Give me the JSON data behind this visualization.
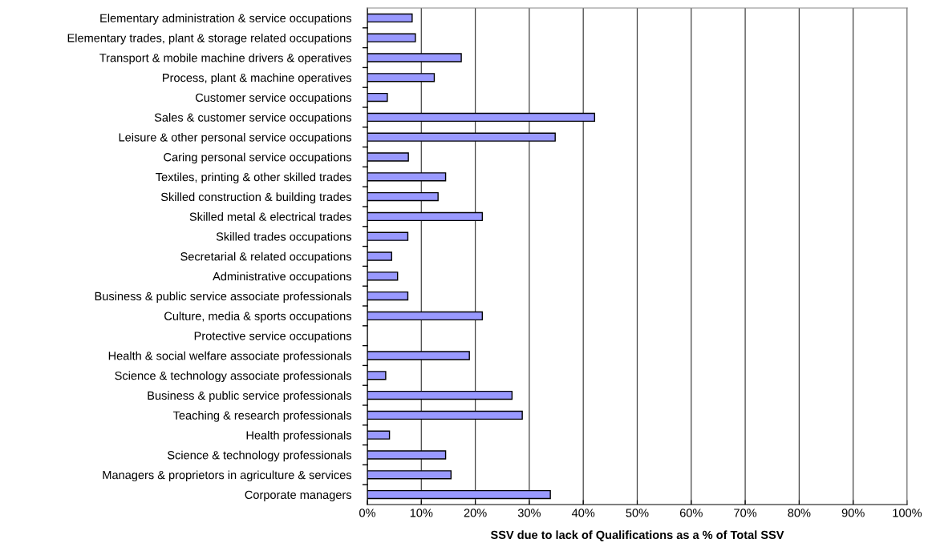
{
  "chart_data": {
    "type": "bar",
    "orientation": "horizontal",
    "xlabel": "SSV due to lack of Qualifications as a % of Total SSV",
    "categories": [
      "Elementary administration & service occupations",
      "Elementary trades, plant & storage related occupations",
      "Transport & mobile machine drivers & operatives",
      "Process, plant & machine operatives",
      "Customer service occupations",
      "Sales & customer service occupations",
      "Leisure & other personal service occupations",
      "Caring personal service occupations",
      "Textiles, printing & other skilled trades",
      "Skilled construction & building trades",
      "Skilled metal & electrical trades",
      "Skilled trades occupations",
      "Secretarial & related occupations",
      "Administrative occupations",
      "Business & public service associate professionals",
      "Culture, media & sports occupations",
      "Protective service occupations",
      "Health & social welfare associate professionals",
      "Science & technology associate professionals",
      "Business & public service professionals",
      "Teaching & research professionals",
      "Health professionals",
      "Science & technology professionals",
      "Managers & proprietors in agriculture & services",
      "Corporate managers"
    ],
    "values": [
      8.3,
      8.9,
      17.4,
      12.4,
      3.7,
      42.1,
      34.8,
      7.6,
      14.5,
      13.1,
      21.3,
      7.5,
      4.5,
      5.6,
      7.5,
      21.3,
      null,
      18.9,
      3.4,
      26.8,
      28.7,
      4.1,
      14.5,
      15.5,
      33.9
    ],
    "color": "#9999ff",
    "xlim": [
      0,
      100
    ],
    "xticks": [
      {
        "value": 0,
        "label": "0%"
      },
      {
        "value": 10,
        "label": "10%"
      },
      {
        "value": 20,
        "label": "20%"
      },
      {
        "value": 30,
        "label": "30%"
      },
      {
        "value": 40,
        "label": "40%"
      },
      {
        "value": 50,
        "label": "50%"
      },
      {
        "value": 60,
        "label": "60%"
      },
      {
        "value": 70,
        "label": "70%"
      },
      {
        "value": 80,
        "label": "80%"
      },
      {
        "value": 90,
        "label": "90%"
      },
      {
        "value": 100,
        "label": "100%"
      }
    ],
    "grid": "x",
    "legend": false
  }
}
